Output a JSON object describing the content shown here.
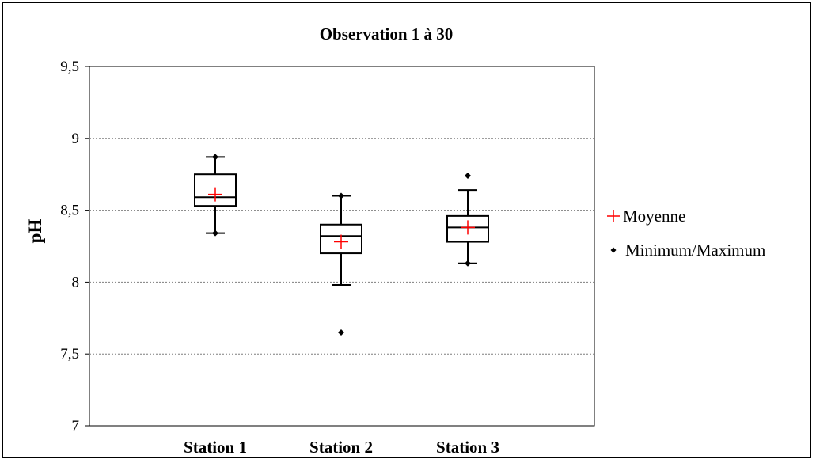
{
  "chart_data": {
    "type": "box",
    "title": "Observation 1 à 30",
    "ylabel": "pH",
    "xlabel": "",
    "ylim": [
      7,
      9.5
    ],
    "yticks": [
      7,
      7.5,
      8,
      8.5,
      9,
      9.5
    ],
    "ytick_labels": [
      "7",
      "7,5",
      "8",
      "8,5",
      "9",
      "9,5"
    ],
    "grid": "horizontal dotted",
    "legend_position": "right",
    "categories": [
      "Station 1",
      "Station 2",
      "Station 3"
    ],
    "boxes": [
      {
        "category": "Station 1",
        "whisker_low": 8.34,
        "q1": 8.53,
        "median": 8.59,
        "q3": 8.75,
        "whisker_high": 8.87,
        "mean": 8.61,
        "min": 8.34,
        "max": 8.87
      },
      {
        "category": "Station 2",
        "whisker_low": 7.98,
        "q1": 8.2,
        "median": 8.32,
        "q3": 8.4,
        "whisker_high": 8.6,
        "mean": 8.28,
        "min": 7.65,
        "max": 8.6
      },
      {
        "category": "Station 3",
        "whisker_low": 8.13,
        "q1": 8.28,
        "median": 8.38,
        "q3": 8.46,
        "whisker_high": 8.64,
        "mean": 8.38,
        "min": 8.13,
        "max": 8.74
      }
    ],
    "legend": [
      {
        "marker": "+",
        "label": "Moyenne",
        "color": "#ff0000"
      },
      {
        "marker": "◆",
        "label": "Minimum/Maximum",
        "color": "#000000"
      }
    ]
  }
}
